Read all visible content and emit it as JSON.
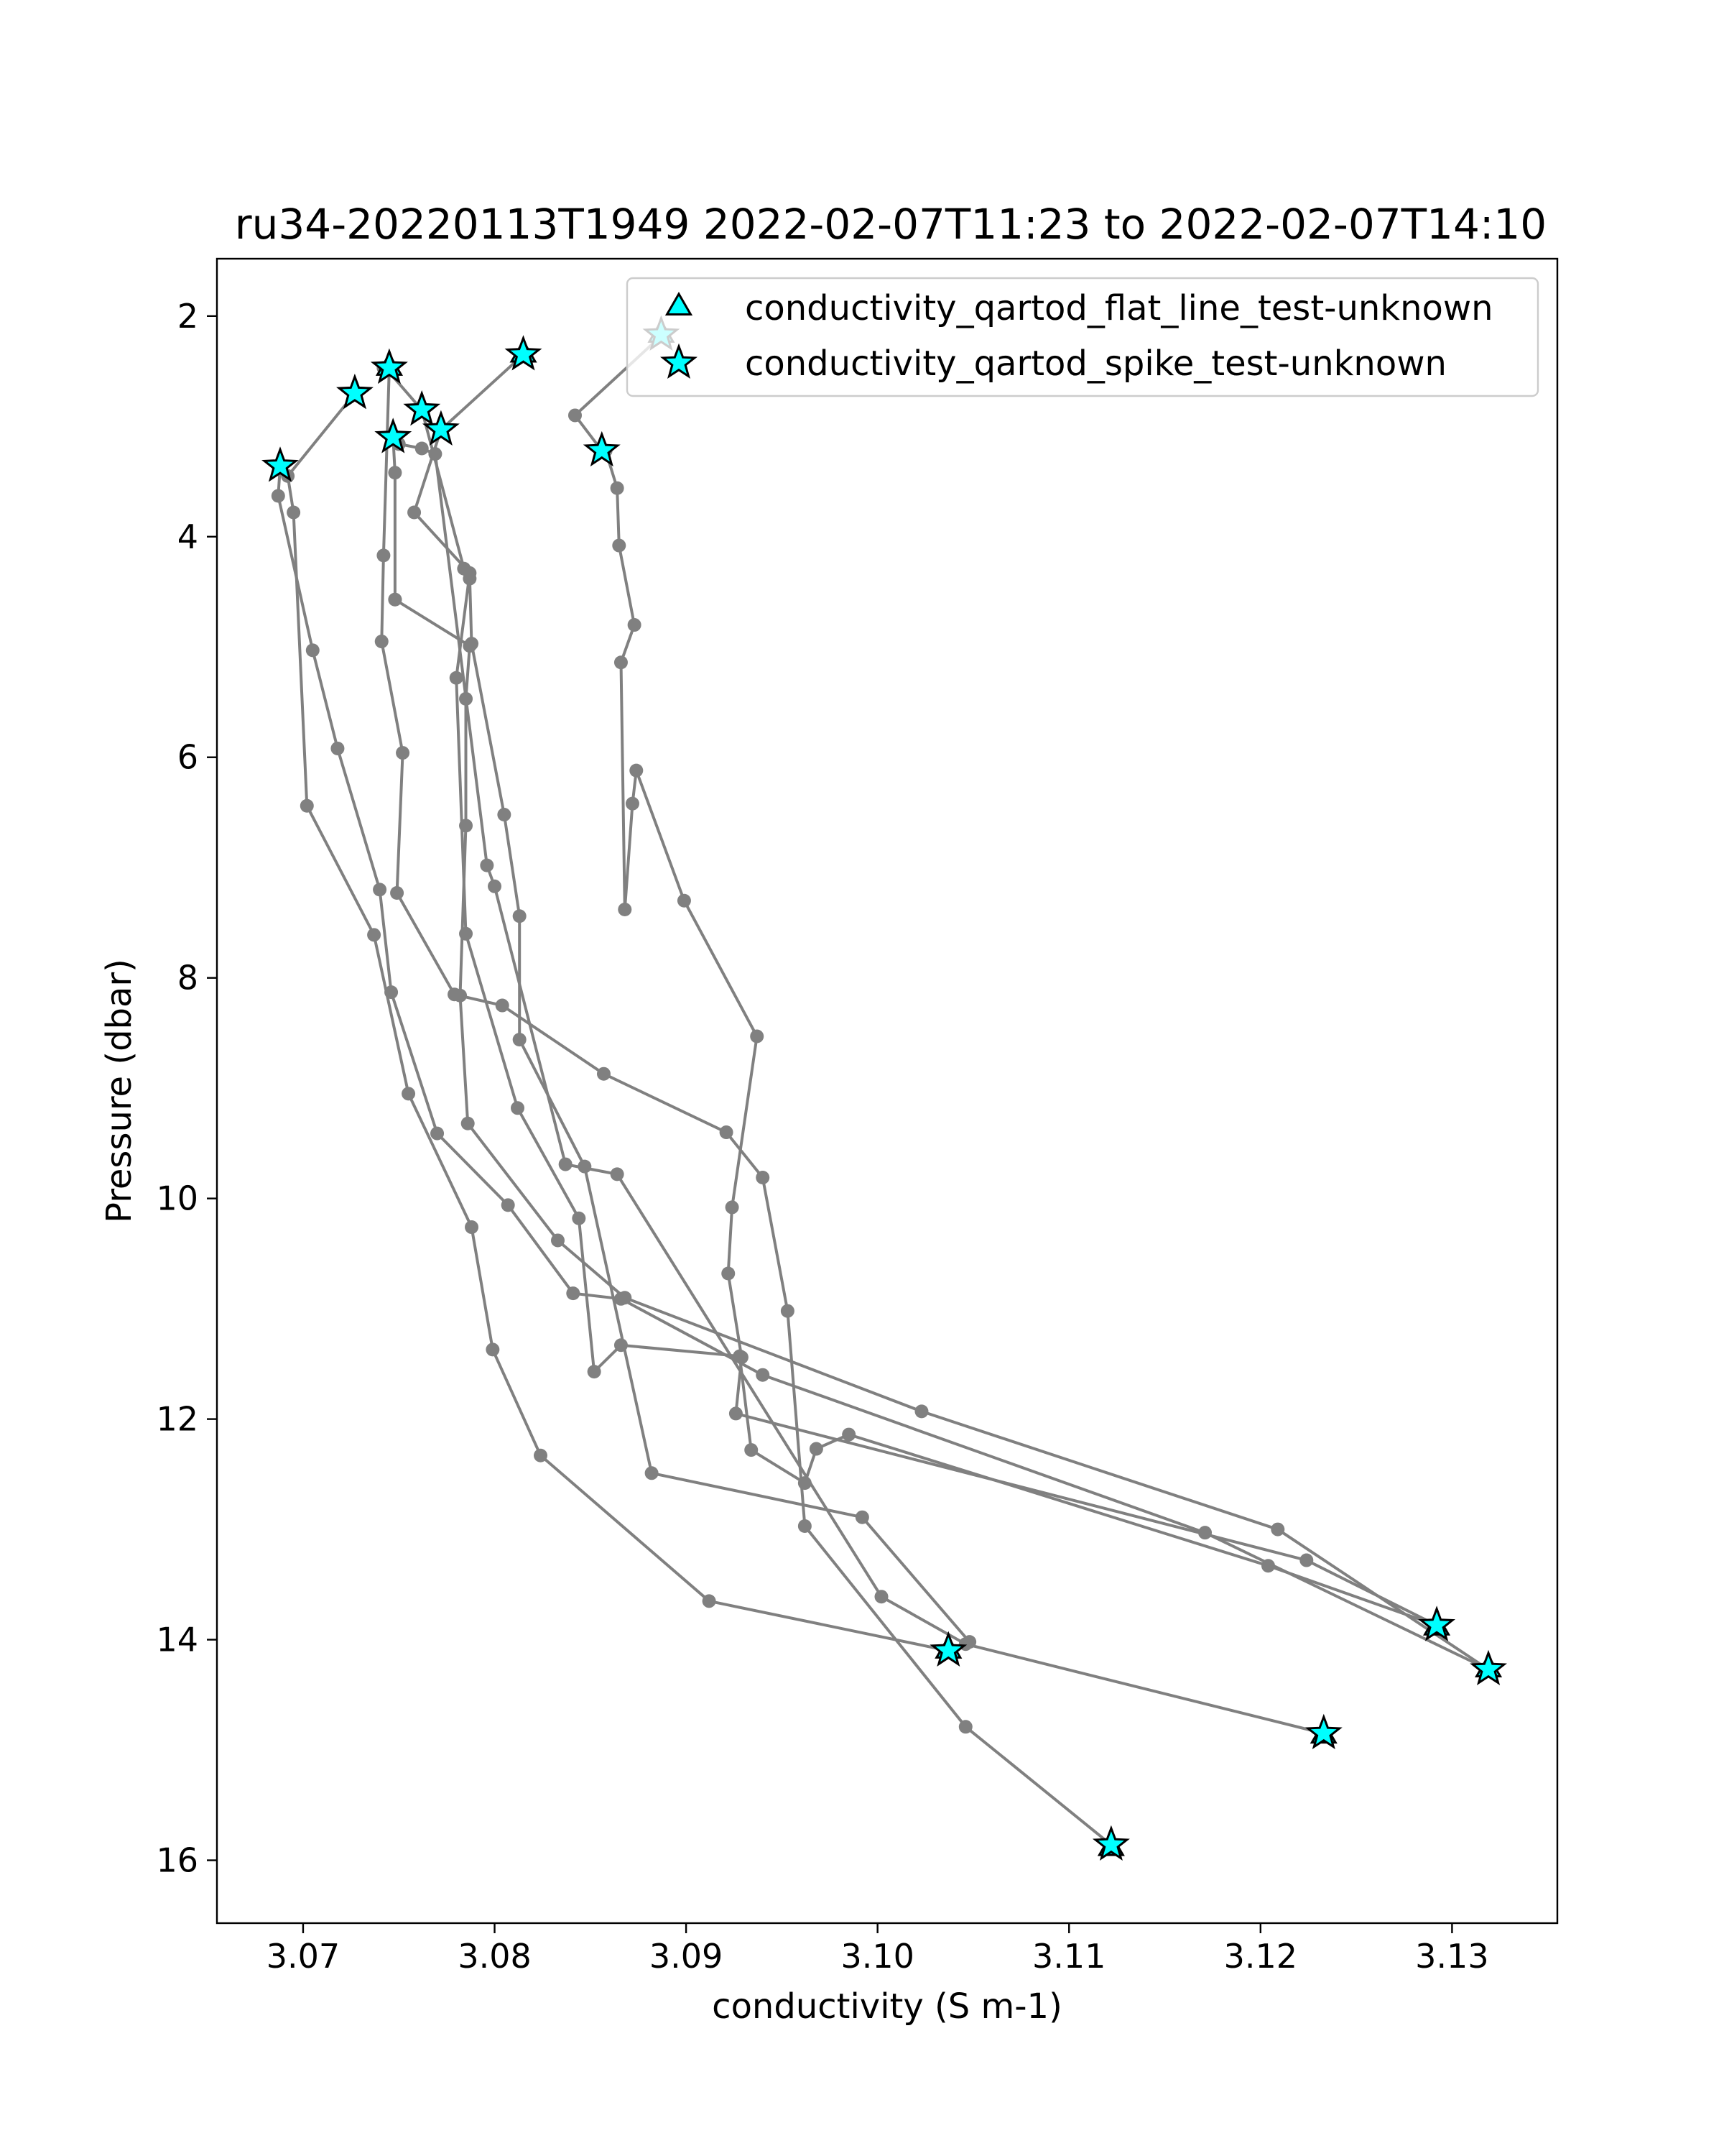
{
  "chart_data": {
    "type": "scatter",
    "title": "ru34-20220113T1949 2022-02-07T11:23 to 2022-02-07T14:10",
    "xlabel": "conductivity (S m-1)",
    "ylabel": "Pressure (dbar)",
    "xlim": [
      3.0655,
      3.1355
    ],
    "ylim": [
      16.57,
      1.48
    ],
    "y_inverted": true,
    "grid": false,
    "legend_position": "top-right",
    "xticks": [
      3.07,
      3.08,
      3.09,
      3.1,
      3.11,
      3.12,
      3.13
    ],
    "xtick_labels": [
      "3.07",
      "3.08",
      "3.09",
      "3.10",
      "3.11",
      "3.12",
      "3.13"
    ],
    "yticks": [
      2,
      4,
      6,
      8,
      10,
      12,
      14,
      16
    ],
    "ytick_labels": [
      "2",
      "4",
      "6",
      "8",
      "10",
      "12",
      "14",
      "16"
    ],
    "colors": {
      "profile_line": "#808080",
      "marker_fill": "#00ffff",
      "marker_edge": "#000000"
    },
    "profile_series": [
      {
        "x": [
          3.0815,
          3.0772,
          3.0758,
          3.0787,
          3.078,
          3.0785,
          3.0812,
          3.0844,
          3.0852,
          3.0866,
          3.0928,
          3.0934,
          3.0962,
          3.0968,
          3.0985,
          3.1204,
          3.1292
        ],
        "y": [
          2.35,
          3.03,
          3.78,
          4.33,
          5.28,
          7.6,
          9.18,
          10.18,
          11.57,
          11.33,
          11.43,
          12.28,
          12.58,
          12.27,
          12.14,
          13.33,
          13.87
        ]
      },
      {
        "x": [
          3.1292,
          3.1224,
          3.0926,
          3.0929,
          3.0922,
          3.0924,
          3.0937,
          3.0899,
          3.0874,
          3.0872,
          3.0868,
          3.0866,
          3.0873,
          3.0865,
          3.0864,
          3.0858,
          3.0856
        ],
        "y": [
          13.87,
          13.28,
          11.95,
          11.44,
          10.68,
          10.08,
          8.53,
          7.3,
          6.12,
          6.42,
          7.38,
          5.14,
          4.8,
          4.08,
          3.56,
          3.22,
          3.22
        ]
      },
      {
        "x": [
          3.0856,
          3.0842,
          3.0887
        ],
        "y": [
          3.22,
          2.9,
          2.18
        ]
      },
      {
        "x": [
          3.0688,
          3.0687,
          3.0705,
          3.0718,
          3.074,
          3.0746,
          3.077,
          3.0807,
          3.0841,
          3.0866,
          3.094,
          3.1171,
          3.1319
        ],
        "y": [
          3.36,
          3.63,
          5.03,
          5.92,
          7.2,
          8.13,
          9.41,
          10.06,
          10.86,
          10.91,
          11.6,
          13.03,
          14.27
        ]
      },
      {
        "x": [
          3.1319,
          3.1209,
          3.1023,
          3.0868,
          3.0833,
          3.0786,
          3.0782,
          3.0785,
          3.0785,
          3.0787,
          3.0748
        ],
        "y": [
          14.27,
          13.0,
          11.93,
          10.9,
          10.38,
          9.32,
          8.16,
          6.62,
          5.47,
          4.99,
          4.57
        ]
      },
      {
        "x": [
          3.0748,
          3.0748,
          3.0747
        ],
        "y": [
          4.57,
          3.42,
          3.1
        ]
      },
      {
        "x": [
          3.0727,
          3.0692,
          3.0695,
          3.0702,
          3.0737,
          3.0755,
          3.0788,
          3.0799,
          3.0824,
          3.0912,
          3.1037
        ],
        "y": [
          2.7,
          3.45,
          3.78,
          6.44,
          7.61,
          9.05,
          10.26,
          11.37,
          12.33,
          13.65,
          14.1
        ]
      },
      {
        "x": [
          3.1037,
          3.1048,
          3.0992,
          3.0882,
          3.0847,
          3.0813,
          3.0813,
          3.0805,
          3.0788,
          3.0787,
          3.0784,
          3.0762
        ],
        "y": [
          14.1,
          14.02,
          12.89,
          12.49,
          9.71,
          8.56,
          7.44,
          6.52,
          4.97,
          4.38,
          4.29,
          2.85
        ]
      },
      {
        "x": [
          3.0762,
          3.0743,
          3.0742,
          3.0745
        ],
        "y": [
          2.85,
          2.47,
          2.47,
          2.47
        ]
      },
      {
        "x": [
          3.0745,
          3.0742,
          3.0741,
          3.0752,
          3.0749,
          3.0779,
          3.0804,
          3.0857,
          3.0921,
          3.094,
          3.0953,
          3.0962,
          3.1046,
          3.1122
        ],
        "y": [
          2.47,
          4.17,
          4.95,
          5.96,
          7.23,
          8.15,
          8.25,
          8.87,
          9.4,
          9.81,
          11.02,
          12.97,
          14.79,
          15.86
        ]
      },
      {
        "x": [
          3.0748,
          3.075,
          3.0762,
          3.0769,
          3.0796,
          3.08,
          3.0837,
          3.0864,
          3.1002,
          3.1046,
          3.1233
        ],
        "y": [
          3.1,
          3.16,
          3.2,
          3.25,
          6.98,
          7.17,
          9.69,
          9.78,
          13.61,
          14.04,
          14.85
        ]
      }
    ],
    "series": [
      {
        "name": "conductivity_qartod_flat_line_test-unknown",
        "marker": "triangle",
        "x": [
          3.0745,
          3.0815,
          3.0887,
          3.1292,
          3.1319,
          3.1233,
          3.1037,
          3.1122
        ],
        "y": [
          2.47,
          2.35,
          2.17,
          13.89,
          14.27,
          14.87,
          14.1,
          15.89
        ]
      },
      {
        "name": "conductivity_qartod_spike_test-unknown",
        "marker": "star",
        "x": [
          3.0688,
          3.0727,
          3.0745,
          3.0815,
          3.0762,
          3.0772,
          3.0747,
          3.0856,
          3.0887,
          3.1037,
          3.1292,
          3.1319,
          3.1233,
          3.1122
        ],
        "y": [
          3.36,
          2.7,
          2.47,
          2.35,
          2.85,
          3.03,
          3.1,
          3.22,
          2.17,
          14.1,
          13.87,
          14.27,
          14.85,
          15.86
        ]
      }
    ]
  }
}
